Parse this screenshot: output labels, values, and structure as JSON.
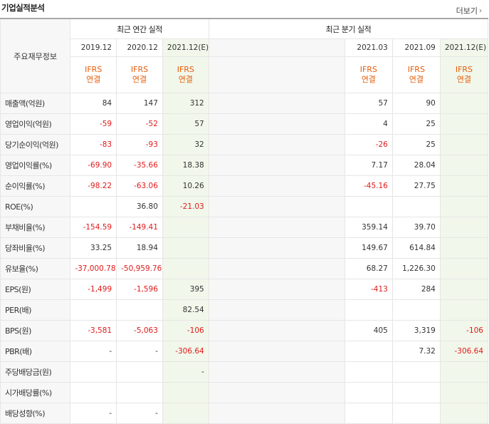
{
  "header": {
    "title": "기업실적분석",
    "more_label": "더보기",
    "more_icon": "chevron-right-icon"
  },
  "table": {
    "label_header": "주요재무정보",
    "annual_group": "최근 연간 실적",
    "quarter_group": "최근 분기 실적",
    "annual_periods": [
      "2019.12",
      "2020.12",
      "2021.12(E)"
    ],
    "quarter_periods": [
      "2021.03",
      "2021.09",
      "2021.12(E)"
    ],
    "ifrs_line1": "IFRS",
    "ifrs_line2": "연결",
    "rows": [
      {
        "label": "매출액(억원)",
        "a": [
          "84",
          "147",
          "312"
        ],
        "q": [
          "57",
          "90",
          ""
        ]
      },
      {
        "label": "영업이익(억원)",
        "a": [
          "-59",
          "-52",
          "57"
        ],
        "q": [
          "4",
          "25",
          ""
        ]
      },
      {
        "label": "당기순이익(억원)",
        "a": [
          "-83",
          "-93",
          "32"
        ],
        "q": [
          "-26",
          "25",
          ""
        ]
      },
      {
        "label": "영업이익률(%)",
        "a": [
          "-69.90",
          "-35.66",
          "18.38"
        ],
        "q": [
          "7.17",
          "28.04",
          ""
        ]
      },
      {
        "label": "순이익률(%)",
        "a": [
          "-98.22",
          "-63.06",
          "10.26"
        ],
        "q": [
          "-45.16",
          "27.75",
          ""
        ]
      },
      {
        "label": "ROE(%)",
        "a": [
          "",
          "36.80",
          "-21.03"
        ],
        "q": [
          "",
          "",
          ""
        ]
      },
      {
        "label": "부채비율(%)",
        "a": [
          "-154.59",
          "-149.41",
          ""
        ],
        "q": [
          "359.14",
          "39.70",
          ""
        ]
      },
      {
        "label": "당좌비율(%)",
        "a": [
          "33.25",
          "18.94",
          ""
        ],
        "q": [
          "149.67",
          "614.84",
          ""
        ]
      },
      {
        "label": "유보율(%)",
        "a": [
          "-37,000.78",
          "-50,959.76",
          ""
        ],
        "q": [
          "68.27",
          "1,226.30",
          ""
        ]
      },
      {
        "label": "EPS(원)",
        "a": [
          "-1,499",
          "-1,596",
          "395"
        ],
        "q": [
          "-413",
          "284",
          ""
        ]
      },
      {
        "label": "PER(배)",
        "a": [
          "",
          "",
          "82.54"
        ],
        "q": [
          "",
          "",
          ""
        ]
      },
      {
        "label": "BPS(원)",
        "a": [
          "-3,581",
          "-5,063",
          "-106"
        ],
        "q": [
          "405",
          "3,319",
          "-106"
        ]
      },
      {
        "label": "PBR(배)",
        "a": [
          "-",
          "-",
          "-306.64"
        ],
        "q": [
          "",
          "7.32",
          "-306.64"
        ]
      },
      {
        "label": "주당배당금(원)",
        "a": [
          "",
          "",
          "-"
        ],
        "q": [
          "",
          "",
          ""
        ]
      },
      {
        "label": "시가배당률(%)",
        "a": [
          "",
          "",
          ""
        ],
        "q": [
          "",
          "",
          ""
        ]
      },
      {
        "label": "배당성향(%)",
        "a": [
          "-",
          "-",
          ""
        ],
        "q": [
          "",
          "",
          ""
        ]
      }
    ]
  },
  "colors": {
    "negative": "#e01a1a",
    "ifrs": "#e55e0c",
    "estimate_bg": "#f1f7ea",
    "label_bg": "#f7f7f7"
  }
}
